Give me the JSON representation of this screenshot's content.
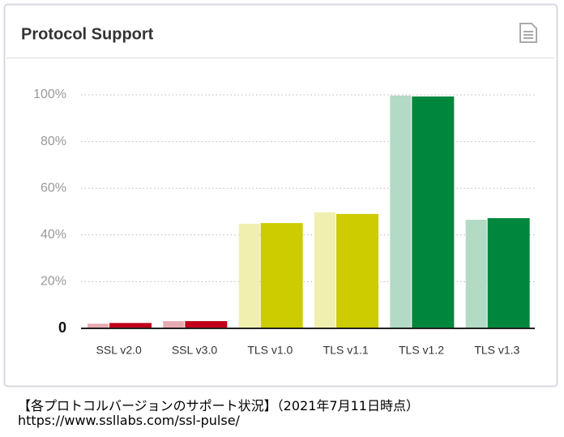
{
  "chart_data": {
    "type": "bar",
    "title": "Protocol Support",
    "categories": [
      "SSL v2.0",
      "SSL v3.0",
      "TLS v1.0",
      "TLS v1.1",
      "TLS v1.2",
      "TLS v1.3"
    ],
    "series": [
      {
        "colors": [
          "#e8aab2",
          "#e8aab2",
          "#f0efaf",
          "#f0efaf",
          "#b2dac5",
          "#b2dac5"
        ],
        "values": [
          2.0,
          3.1,
          44.8,
          49.7,
          99.7,
          46.5
        ]
      },
      {
        "colors": [
          "#c1001b",
          "#c1001b",
          "#cccc00",
          "#cccc00",
          "#00873d",
          "#00873d"
        ],
        "values": [
          2.3,
          3.1,
          45.1,
          49.0,
          99.3,
          47.2
        ]
      }
    ],
    "ylim": [
      0,
      100
    ],
    "yticks": [
      0,
      {
        "value": 20,
        "label": "20%"
      },
      {
        "value": 40,
        "label": "40%"
      },
      {
        "value": 60,
        "label": "60%"
      },
      {
        "value": 80,
        "label": "80%"
      },
      {
        "value": 100,
        "label": "100%"
      }
    ],
    "grid": true
  },
  "notes": [
    "【各プロトコルバージョンのサポート状況】（2021年7月11日時点）",
    "https://www.ssllabs.com/ssl-pulse/"
  ]
}
